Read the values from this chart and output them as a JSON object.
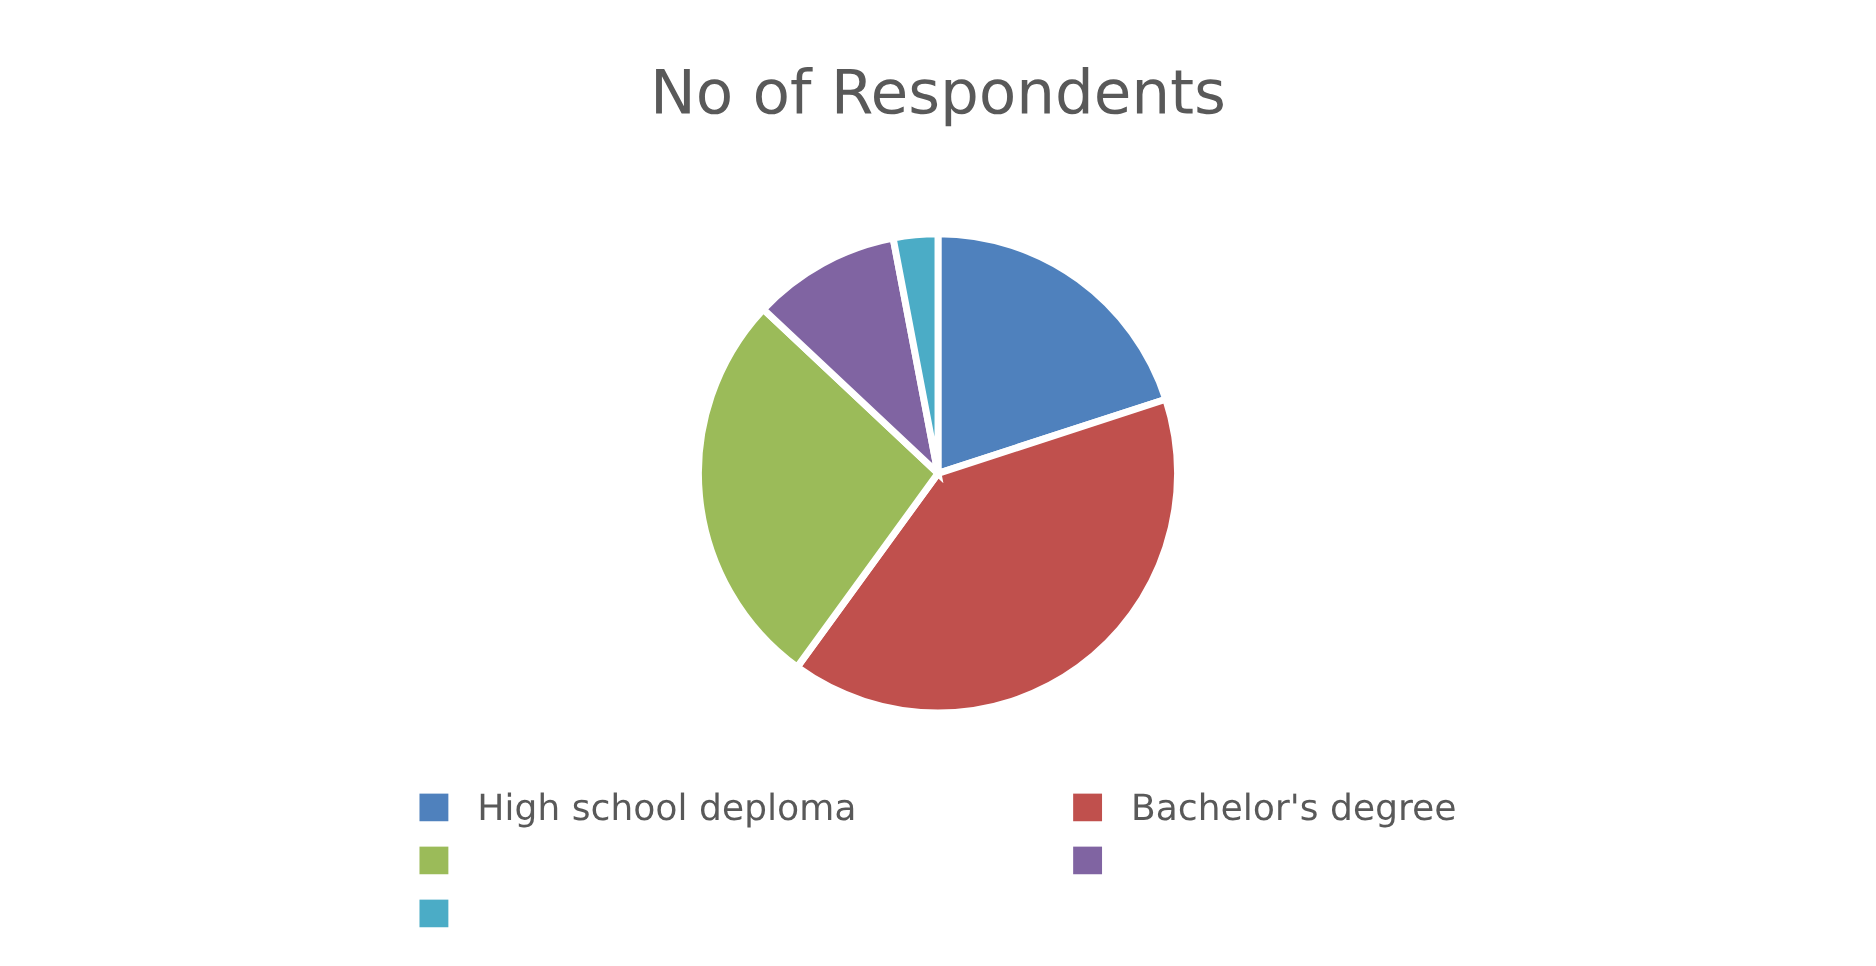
{
  "chart_data": {
    "type": "pie",
    "title": "No of Respondents",
    "categories": [
      "High school deploma",
      "Bachelor's degree",
      null,
      null,
      null
    ],
    "values": [
      20,
      40,
      27,
      10,
      3
    ],
    "colors": [
      "#4f81bd",
      "#c0504d",
      "#9bbb59",
      "#8064a2",
      "#4bacc6"
    ],
    "legend": "bottom"
  }
}
